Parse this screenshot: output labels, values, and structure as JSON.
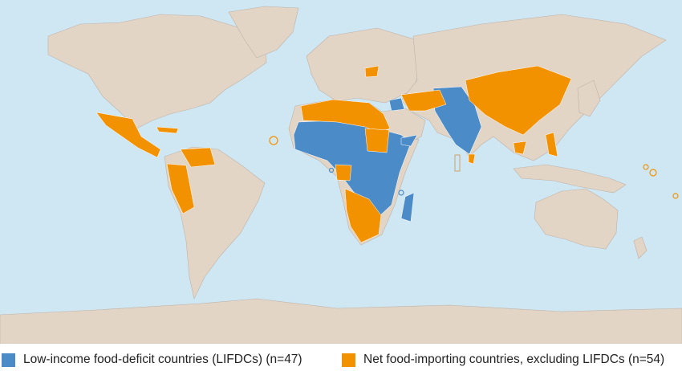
{
  "legend": {
    "items": [
      {
        "label": "Low-income food-deficit countries (LIFDCs) (n=47)",
        "color": "#4b8cc8"
      },
      {
        "label": "Net food-importing countries, excluding LIFDCs (n=54)",
        "color": "#f39200"
      }
    ]
  }
}
